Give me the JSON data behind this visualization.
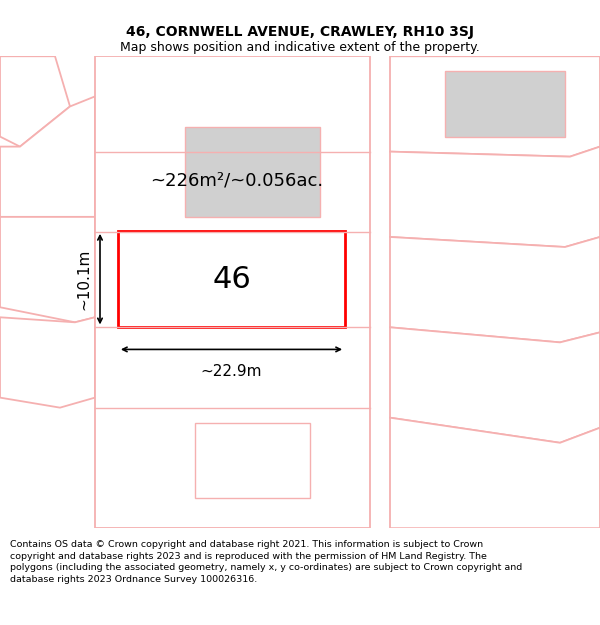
{
  "title": "46, CORNWELL AVENUE, CRAWLEY, RH10 3SJ",
  "subtitle": "Map shows position and indicative extent of the property.",
  "footer": "Contains OS data © Crown copyright and database right 2021. This information is subject to Crown copyright and database rights 2023 and is reproduced with the permission of HM Land Registry. The polygons (including the associated geometry, namely x, y co-ordinates) are subject to Crown copyright and database rights 2023 Ordnance Survey 100026316.",
  "background_color": "#ffffff",
  "light_pink": "#f5b0b0",
  "lighter_pink": "#ffffff",
  "red": "#ff0000",
  "gray_fill": "#d0d0d0",
  "area_label": "~226m²/~0.056ac.",
  "house_number": "46",
  "width_label": "~22.9m",
  "height_label": "~10.1m",
  "title_fontsize": 10,
  "subtitle_fontsize": 9,
  "footer_fontsize": 6.8
}
